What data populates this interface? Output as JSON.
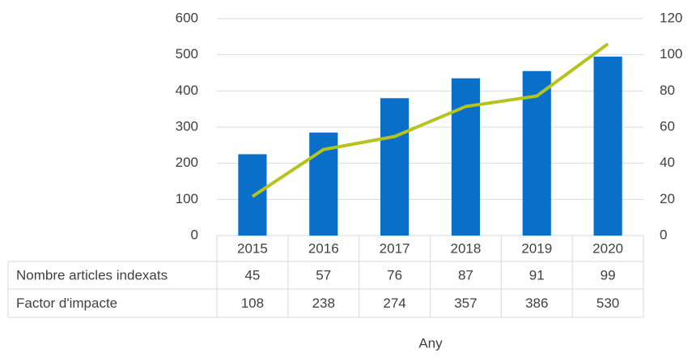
{
  "chart_data": {
    "type": "bar",
    "categories": [
      "2015",
      "2016",
      "2017",
      "2018",
      "2019",
      "2020"
    ],
    "series": [
      {
        "name": "Nombre articles indexats",
        "type": "bar",
        "axis": "y2",
        "color": "#0a6fc8",
        "values": [
          45,
          57,
          76,
          87,
          91,
          99
        ]
      },
      {
        "name": "Factor d'impacte",
        "type": "line",
        "axis": "y",
        "color": "#b5c31c",
        "values": [
          108,
          238,
          274,
          357,
          386,
          530
        ]
      }
    ],
    "ylim": [
      0,
      600
    ],
    "yticks": [
      0,
      100,
      200,
      300,
      400,
      500,
      600
    ],
    "y2lim": [
      0,
      120
    ],
    "y2ticks": [
      0,
      20,
      40,
      60,
      80,
      100,
      120
    ],
    "x_label": "Any",
    "grid": true
  }
}
